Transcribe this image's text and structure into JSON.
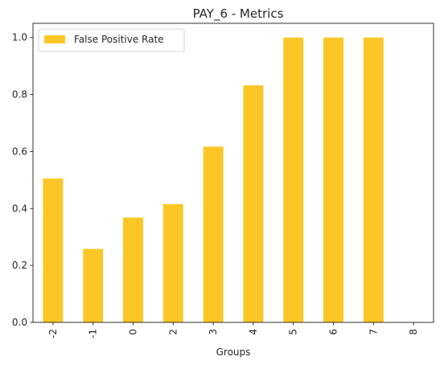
{
  "chart_data": {
    "type": "bar",
    "title": "PAY_6 - Metrics",
    "xlabel": "Groups",
    "ylabel": "",
    "categories": [
      "-2",
      "-1",
      "0",
      "2",
      "3",
      "4",
      "5",
      "6",
      "7",
      "8"
    ],
    "series": [
      {
        "name": "False Positive Rate",
        "color": "#fcc726",
        "values": [
          0.505,
          0.258,
          0.368,
          0.415,
          0.617,
          0.832,
          1.0,
          1.0,
          1.0,
          0.0
        ]
      }
    ],
    "ylim": [
      0,
      1.05
    ],
    "yticks": [
      "0.0",
      "0.2",
      "0.4",
      "0.6",
      "0.8",
      "1.0"
    ],
    "grid": false,
    "legend_position": "top-left"
  }
}
